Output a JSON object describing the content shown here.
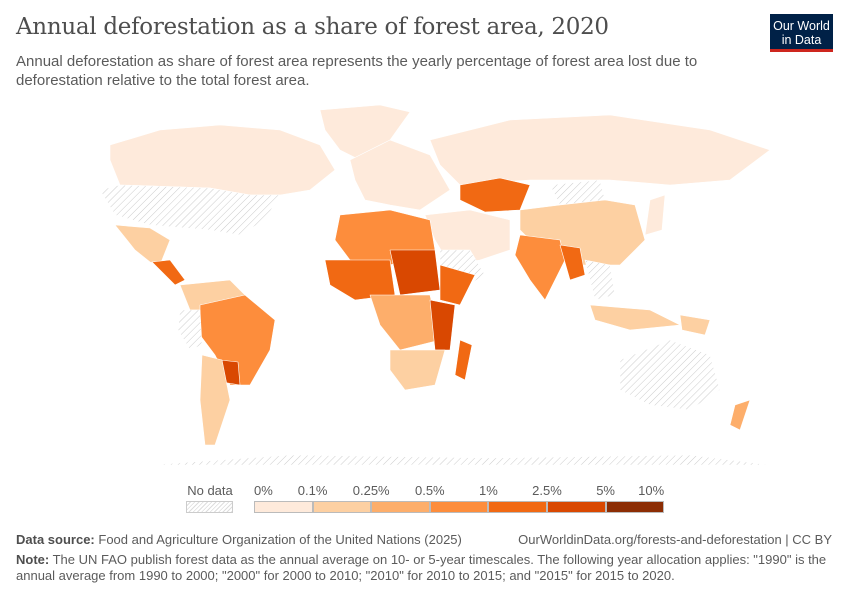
{
  "header": {
    "title": "Annual deforestation as a share of forest area, 2020",
    "subtitle": "Annual deforestation as share of forest area represents the yearly percentage of forest area lost due to deforestation relative to the total forest area.",
    "logo_line1": "Our World",
    "logo_line2": "in Data"
  },
  "map": {
    "year": "2020",
    "no_data_label": "No data",
    "bins": [
      {
        "from": "0%",
        "to": "0.1%",
        "color": "#feeadb"
      },
      {
        "from": "0.1%",
        "to": "0.25%",
        "color": "#fdd0a2"
      },
      {
        "from": "0.25%",
        "to": "0.5%",
        "color": "#fdae6b"
      },
      {
        "from": "0.5%",
        "to": "1%",
        "color": "#fd8d3c"
      },
      {
        "from": "1%",
        "to": "2.5%",
        "color": "#f16913"
      },
      {
        "from": "2.5%",
        "to": "5%",
        "color": "#d94801"
      },
      {
        "from": "5%",
        "to": "10%",
        "color": "#8c2d04"
      }
    ],
    "tick_labels": [
      "0%",
      "0.1%",
      "0.25%",
      "0.5%",
      "1%",
      "2.5%",
      "5%",
      "10%"
    ]
  },
  "footer": {
    "source_label": "Data source:",
    "source_text": "Food and Agriculture Organization of the United Nations (2025)",
    "url": "OurWorldinData.org/forests-and-deforestation | CC BY",
    "note_label": "Note:",
    "note_text": "The UN FAO publish forest data as the annual average on 10- or 5-year timescales. The following year allocation applies: \"1990\" is the annual average from 1990 to 2000; \"2000\" for 2000 to 2010; \"2010\" for 2010 to 2015; and \"2015\" for 2015 to 2020."
  }
}
